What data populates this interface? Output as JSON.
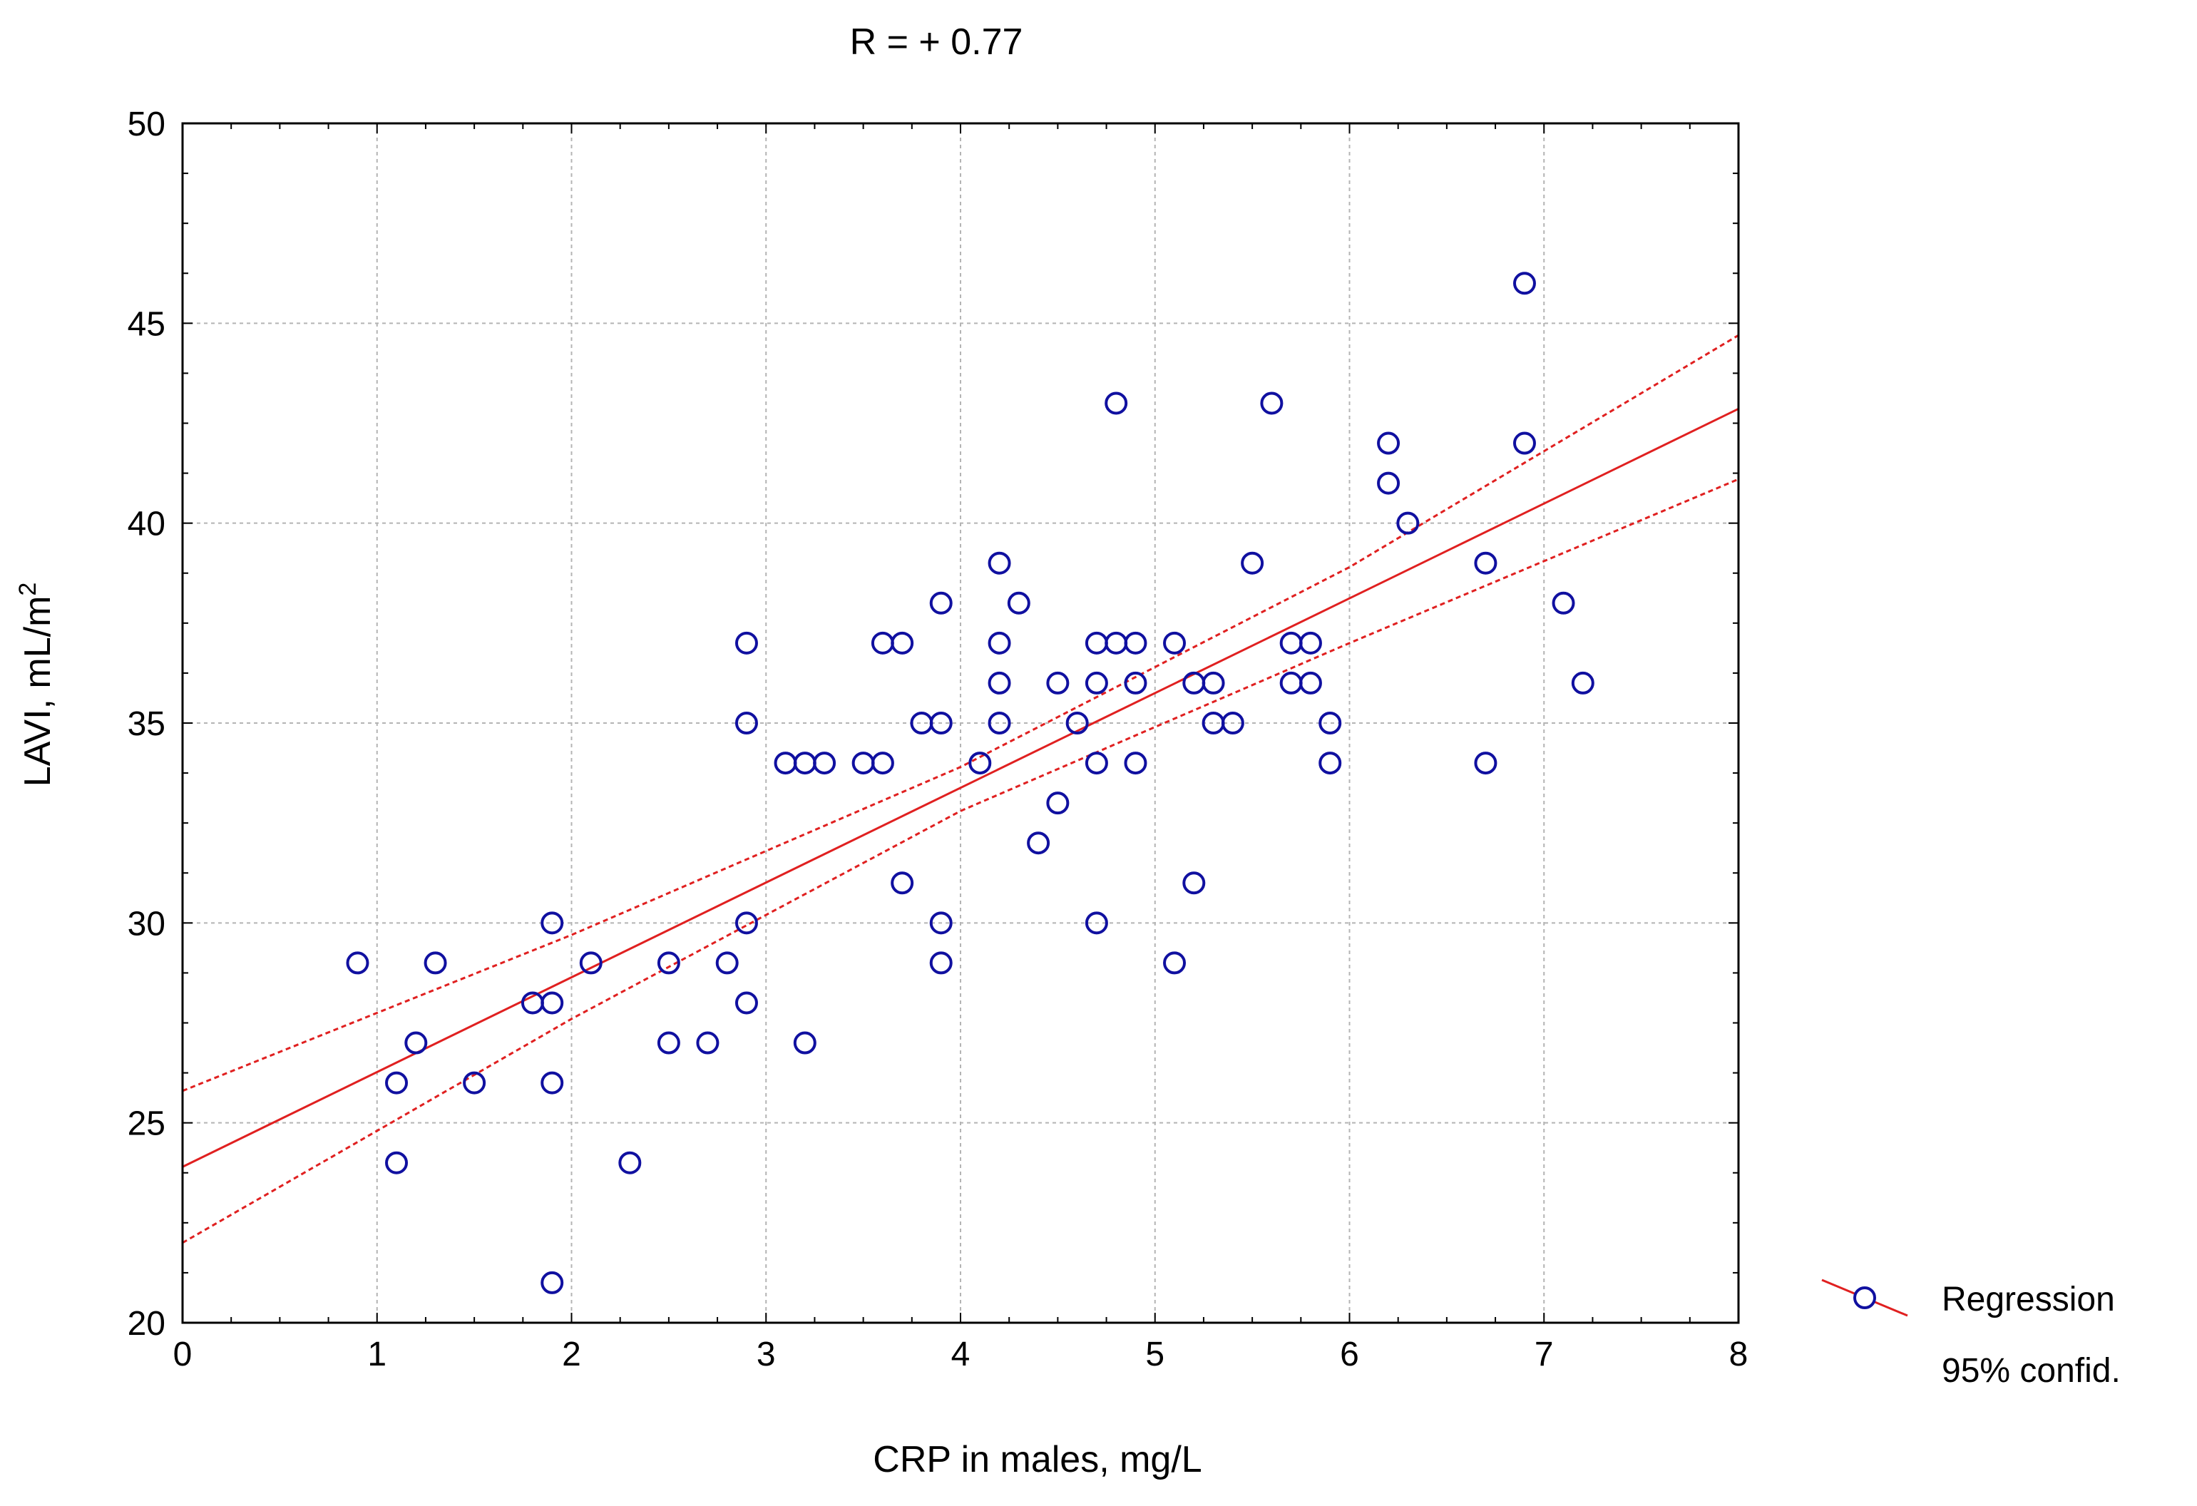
{
  "chart_data": {
    "type": "scatter",
    "title": "R = + 0.77",
    "xlabel": "CRP in males, mg/L",
    "ylabel_main": "LAVI, mL/m",
    "ylabel_sup": "2",
    "xlim": [
      0,
      8
    ],
    "ylim": [
      20,
      50
    ],
    "xticks": [
      0,
      1,
      2,
      3,
      4,
      5,
      6,
      7,
      8
    ],
    "yticks": [
      20,
      25,
      30,
      35,
      40,
      45,
      50
    ],
    "xtick_labels": [
      "0",
      "1",
      "2",
      "3",
      "4",
      "5",
      "6",
      "7",
      "8"
    ],
    "ytick_labels": [
      "20",
      "25",
      "30",
      "35",
      "40",
      "45",
      "50"
    ],
    "grid": true,
    "legend_position": "bottom-right outside",
    "legend": {
      "regression_label": "Regression",
      "confidence_label": "95% confid."
    },
    "regression": {
      "intercept": 23.9,
      "slope": 2.37,
      "ci_lower": [
        [
          0,
          22.0
        ],
        [
          2,
          27.6
        ],
        [
          4,
          32.8
        ],
        [
          6,
          37.0
        ],
        [
          8,
          41.1
        ]
      ],
      "ci_upper": [
        [
          0,
          25.8
        ],
        [
          2,
          29.7
        ],
        [
          4,
          33.9
        ],
        [
          6,
          38.9
        ],
        [
          8,
          44.7
        ]
      ]
    },
    "colors": {
      "points": "#1010a0",
      "regression": "#e02020",
      "grid": "#b4b4b4",
      "axes": "#000000"
    },
    "points": [
      [
        0.9,
        29
      ],
      [
        1.1,
        26
      ],
      [
        1.1,
        24
      ],
      [
        1.2,
        27
      ],
      [
        1.3,
        29
      ],
      [
        1.5,
        26
      ],
      [
        1.8,
        28
      ],
      [
        1.9,
        30
      ],
      [
        1.9,
        28
      ],
      [
        1.9,
        26
      ],
      [
        1.9,
        21
      ],
      [
        2.1,
        29
      ],
      [
        2.3,
        24
      ],
      [
        2.5,
        29
      ],
      [
        2.5,
        27
      ],
      [
        2.7,
        27
      ],
      [
        2.8,
        29
      ],
      [
        2.9,
        37
      ],
      [
        2.9,
        35
      ],
      [
        2.9,
        30
      ],
      [
        2.9,
        28
      ],
      [
        3.1,
        34
      ],
      [
        3.2,
        34
      ],
      [
        3.2,
        27
      ],
      [
        3.3,
        34
      ],
      [
        3.5,
        34
      ],
      [
        3.6,
        37
      ],
      [
        3.6,
        34
      ],
      [
        3.7,
        37
      ],
      [
        3.7,
        31
      ],
      [
        3.8,
        35
      ],
      [
        3.9,
        38
      ],
      [
        3.9,
        35
      ],
      [
        3.9,
        30
      ],
      [
        3.9,
        29
      ],
      [
        4.1,
        34
      ],
      [
        4.2,
        39
      ],
      [
        4.2,
        37
      ],
      [
        4.2,
        36
      ],
      [
        4.2,
        35
      ],
      [
        4.3,
        38
      ],
      [
        4.4,
        32
      ],
      [
        4.5,
        36
      ],
      [
        4.5,
        33
      ],
      [
        4.6,
        35
      ],
      [
        4.7,
        37
      ],
      [
        4.7,
        36
      ],
      [
        4.7,
        34
      ],
      [
        4.7,
        30
      ],
      [
        4.8,
        43
      ],
      [
        4.8,
        37
      ],
      [
        4.9,
        37
      ],
      [
        4.9,
        36
      ],
      [
        4.9,
        34
      ],
      [
        5.1,
        37
      ],
      [
        5.1,
        29
      ],
      [
        5.2,
        36
      ],
      [
        5.2,
        31
      ],
      [
        5.3,
        36
      ],
      [
        5.3,
        35
      ],
      [
        5.4,
        35
      ],
      [
        5.5,
        39
      ],
      [
        5.6,
        43
      ],
      [
        5.7,
        37
      ],
      [
        5.7,
        36
      ],
      [
        5.8,
        37
      ],
      [
        5.8,
        36
      ],
      [
        5.9,
        35
      ],
      [
        5.9,
        34
      ],
      [
        6.2,
        42
      ],
      [
        6.2,
        41
      ],
      [
        6.3,
        40
      ],
      [
        6.7,
        39
      ],
      [
        6.7,
        34
      ],
      [
        6.9,
        46
      ],
      [
        6.9,
        42
      ],
      [
        7.1,
        38
      ],
      [
        7.2,
        36
      ]
    ]
  }
}
